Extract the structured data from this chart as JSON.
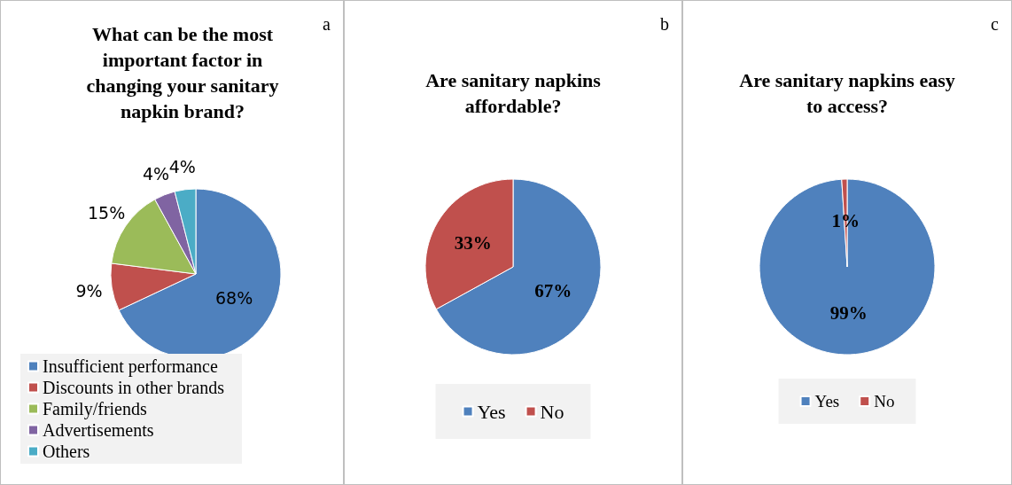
{
  "chart_data": [
    {
      "type": "pie",
      "title": "What can be the most important factor in changing your sanitary napkin brand?",
      "categories": [
        "Insufficient performance",
        "Discounts in other brands",
        "Family/friends",
        "Advertisements",
        "Others"
      ],
      "values": [
        68,
        9,
        15,
        4,
        4
      ],
      "value_labels": [
        "68%",
        "9%",
        "15%",
        "4%",
        "4%"
      ],
      "colors": [
        "#4f81bd",
        "#c0504d",
        "#9bbb59",
        "#8064a2",
        "#4bacc6"
      ],
      "legend": "bottom left",
      "annotations": [
        "a"
      ]
    },
    {
      "type": "pie",
      "title": "Are sanitary napkins affordable?",
      "categories": [
        "Yes",
        "No"
      ],
      "values": [
        67,
        33
      ],
      "value_labels": [
        "67%",
        "33%"
      ],
      "colors": [
        "#4f81bd",
        "#c0504d"
      ],
      "legend": "bottom",
      "annotations": [
        "b"
      ]
    },
    {
      "type": "pie",
      "title": "Are sanitary napkins easy to access?",
      "categories": [
        "Yes",
        "No"
      ],
      "values": [
        99,
        1
      ],
      "value_labels": [
        "99%",
        "1%"
      ],
      "colors": [
        "#4f81bd",
        "#c0504d"
      ],
      "legend": "bottom",
      "annotations": [
        "c"
      ]
    }
  ]
}
